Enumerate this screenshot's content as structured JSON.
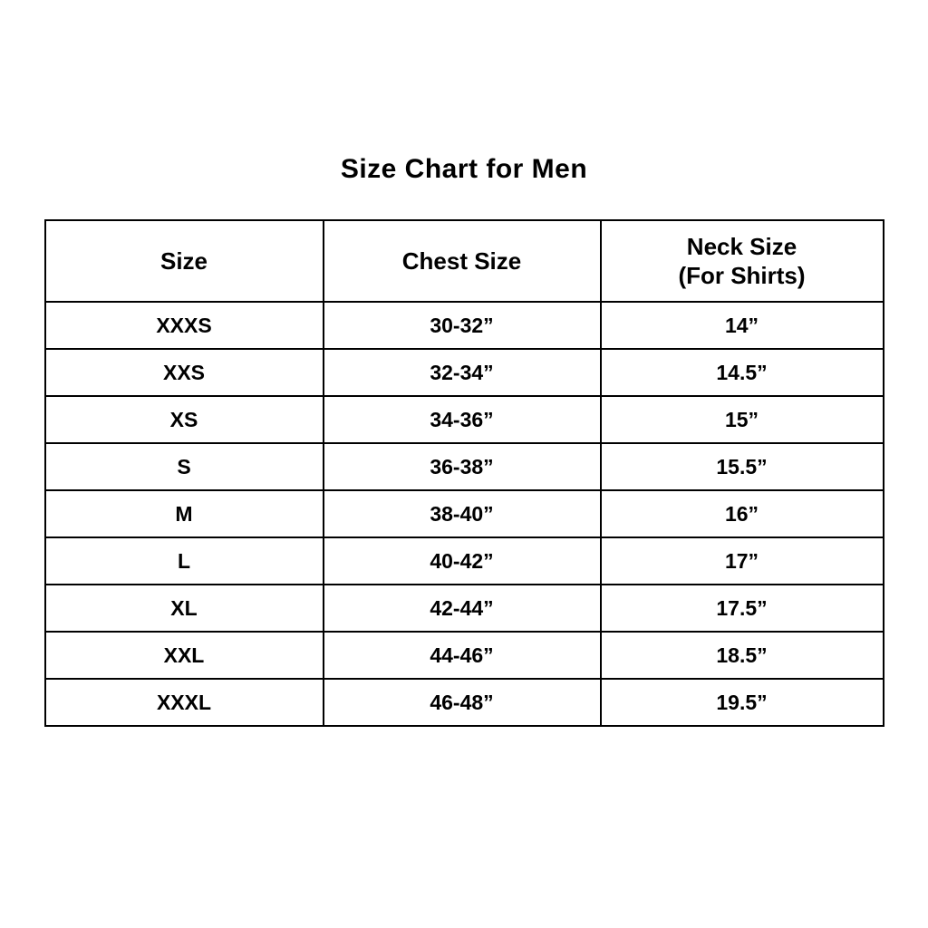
{
  "page": {
    "title": "Size Chart for Men"
  },
  "table": {
    "headers": {
      "size": "Size",
      "chest": "Chest Size",
      "neck_line1": "Neck Size",
      "neck_line2": "(For Shirts)"
    },
    "rows": [
      {
        "size": "XXXS",
        "chest": "30-32”",
        "neck": "14”"
      },
      {
        "size": "XXS",
        "chest": "32-34”",
        "neck": "14.5”"
      },
      {
        "size": "XS",
        "chest": "34-36”",
        "neck": "15”"
      },
      {
        "size": "S",
        "chest": "36-38”",
        "neck": "15.5”"
      },
      {
        "size": "M",
        "chest": "38-40”",
        "neck": "16”"
      },
      {
        "size": "L",
        "chest": "40-42”",
        "neck": "17”"
      },
      {
        "size": "XL",
        "chest": "42-44”",
        "neck": "17.5”"
      },
      {
        "size": "XXL",
        "chest": "44-46”",
        "neck": "18.5”"
      },
      {
        "size": "XXXL",
        "chest": "46-48”",
        "neck": "19.5”"
      }
    ]
  },
  "chart_data": {
    "type": "table",
    "title": "Size Chart for Men",
    "columns": [
      "Size",
      "Chest Size",
      "Neck Size (For Shirts)"
    ],
    "rows": [
      [
        "XXXS",
        "30-32”",
        "14”"
      ],
      [
        "XXS",
        "32-34”",
        "14.5”"
      ],
      [
        "XS",
        "34-36”",
        "15”"
      ],
      [
        "S",
        "36-38”",
        "15.5”"
      ],
      [
        "M",
        "38-40”",
        "16”"
      ],
      [
        "L",
        "40-42”",
        "17”"
      ],
      [
        "XL",
        "42-44”",
        "17.5”"
      ],
      [
        "XXL",
        "44-46”",
        "18.5”"
      ],
      [
        "XXXL",
        "46-48”",
        "19.5”"
      ]
    ],
    "layout": {
      "grid": "full-borders",
      "text_align": "center",
      "font_weight": "bold"
    }
  }
}
